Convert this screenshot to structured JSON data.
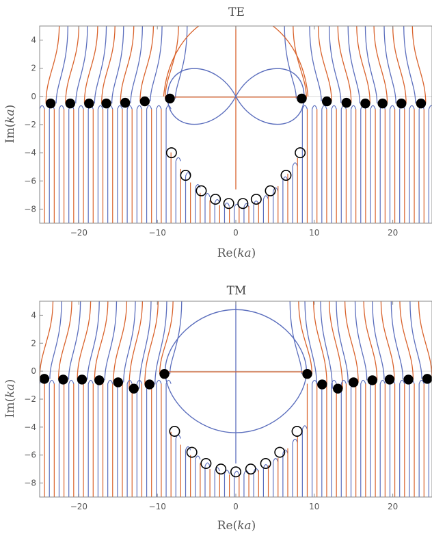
{
  "colors": {
    "blue": "#5b6ebd",
    "orange": "#d9622b",
    "frame": "#888888",
    "marker": "#000000"
  },
  "chart_data": [
    {
      "type": "contour",
      "title": "TE",
      "xlabel_plain": "Re(",
      "xlabel_italic": "ka",
      "xlabel_close": ")",
      "ylabel_plain": "Im(",
      "ylabel_italic": "ka",
      "ylabel_close": ")",
      "xlim": [
        -25,
        25
      ],
      "ylim": [
        -9,
        5
      ],
      "xticks": [
        -20,
        -10,
        0,
        10,
        20
      ],
      "yticks": [
        -8,
        -6,
        -4,
        -2,
        0,
        2,
        4
      ],
      "xtick_labels": [
        "−20",
        "−10",
        "0",
        "10",
        "20"
      ],
      "ytick_labels": [
        "−8",
        "−6",
        "−4",
        "−2",
        "0",
        "2",
        "4"
      ],
      "series": [
        {
          "marker": "filled",
          "points": [
            [
              -23.6,
              -0.5
            ],
            [
              -21.1,
              -0.5
            ],
            [
              -18.7,
              -0.5
            ],
            [
              -16.5,
              -0.5
            ],
            [
              -14.1,
              -0.45
            ],
            [
              -11.6,
              -0.35
            ],
            [
              -8.4,
              -0.15
            ],
            [
              8.4,
              -0.15
            ],
            [
              11.6,
              -0.35
            ],
            [
              14.1,
              -0.45
            ],
            [
              16.5,
              -0.5
            ],
            [
              18.7,
              -0.5
            ],
            [
              21.1,
              -0.5
            ],
            [
              23.6,
              -0.5
            ]
          ]
        },
        {
          "marker": "open",
          "points": [
            [
              -8.2,
              -4.0
            ],
            [
              -6.4,
              -5.6
            ],
            [
              -4.4,
              -6.7
            ],
            [
              -2.6,
              -7.3
            ],
            [
              -0.9,
              -7.6
            ],
            [
              0.9,
              -7.6
            ],
            [
              2.6,
              -7.3
            ],
            [
              4.4,
              -6.7
            ],
            [
              6.4,
              -5.6
            ],
            [
              8.2,
              -4.0
            ]
          ]
        }
      ],
      "loop": {
        "kind": "figure-eight",
        "half_width": 8.7,
        "height": 2.2
      }
    },
    {
      "type": "contour",
      "title": "TM",
      "xlabel_plain": "Re(",
      "xlabel_italic": "ka",
      "xlabel_close": ")",
      "ylabel_plain": "Im(",
      "ylabel_italic": "ka",
      "ylabel_close": ")",
      "xlim": [
        -25,
        25
      ],
      "ylim": [
        -9,
        5
      ],
      "xticks": [
        -20,
        -10,
        0,
        10,
        20
      ],
      "yticks": [
        -8,
        -6,
        -4,
        -2,
        0,
        2,
        4
      ],
      "xtick_labels": [
        "−20",
        "−10",
        "0",
        "10",
        "20"
      ],
      "ytick_labels": [
        "−8",
        "−6",
        "−4",
        "−2",
        "0",
        "2",
        "4"
      ],
      "series": [
        {
          "marker": "filled",
          "points": [
            [
              -24.4,
              -0.55
            ],
            [
              -22.0,
              -0.6
            ],
            [
              -19.6,
              -0.6
            ],
            [
              -17.4,
              -0.65
            ],
            [
              -15.0,
              -0.8
            ],
            [
              -13.0,
              -1.25
            ],
            [
              -11.0,
              -0.95
            ],
            [
              -9.1,
              -0.2
            ],
            [
              9.1,
              -0.2
            ],
            [
              11.0,
              -0.95
            ],
            [
              13.0,
              -1.25
            ],
            [
              15.0,
              -0.8
            ],
            [
              17.4,
              -0.65
            ],
            [
              19.6,
              -0.6
            ],
            [
              22.0,
              -0.6
            ],
            [
              24.4,
              -0.55
            ]
          ]
        },
        {
          "marker": "open",
          "points": [
            [
              -7.8,
              -4.3
            ],
            [
              -5.6,
              -5.8
            ],
            [
              -3.8,
              -6.6
            ],
            [
              -1.9,
              -7.0
            ],
            [
              0.0,
              -7.2
            ],
            [
              1.9,
              -7.0
            ],
            [
              3.8,
              -6.6
            ],
            [
              5.6,
              -5.8
            ],
            [
              7.8,
              -4.3
            ]
          ]
        }
      ],
      "loop": {
        "kind": "oval",
        "half_width": 9.0,
        "height": 4.4
      }
    }
  ]
}
